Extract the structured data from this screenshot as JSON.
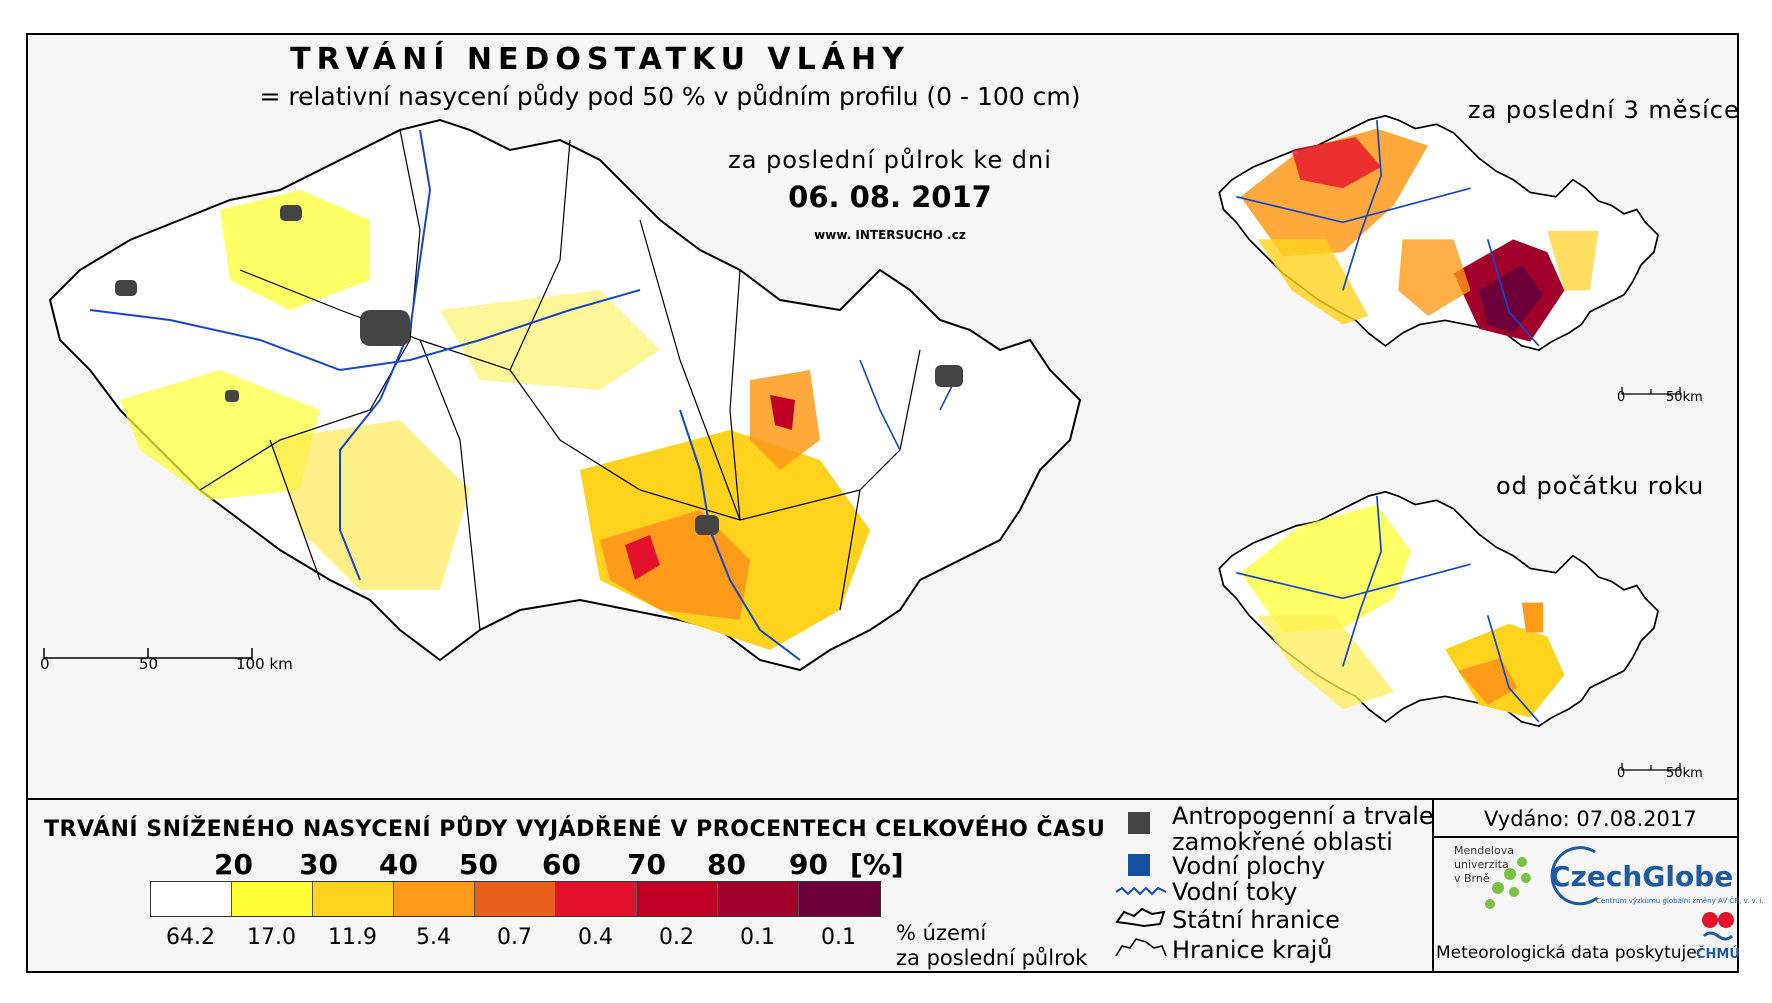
{
  "header": {
    "title": "TRVÁNÍ NEDOSTATKU VLÁHY",
    "subtitle": "= relativní nasycení půdy pod 50 % v půdním profilu (0 - 100 cm)",
    "period": "za poslední půlrok ke dni",
    "date": "06. 08. 2017",
    "website": "www. INTERSUCHO .cz"
  },
  "insets": {
    "last3months": "za poslední 3 měsíce",
    "since_year_start": "od počátku roku",
    "scale_zero": "0",
    "scale_end": "50km"
  },
  "main_scale": {
    "zero": "0",
    "mid": "50",
    "end": "100 km"
  },
  "legend": {
    "title": "TRVÁNÍ SNÍŽENÉHO NASYCENÍ PŮDY VYJÁDŘENÉ V PROCENTECH CELKOVÉHO ČASU",
    "ticks": [
      "20",
      "30",
      "40",
      "50",
      "60",
      "70",
      "80",
      "90",
      "[%]"
    ],
    "colors": [
      "#ffffff",
      "#ffff33",
      "#ffd21e",
      "#ff9a1a",
      "#e8601c",
      "#e3112c",
      "#c00025",
      "#a0002a",
      "#6c003a"
    ],
    "percentages": [
      "64.2",
      "17.0",
      "11.9",
      "5.4",
      "0.7",
      "0.4",
      "0.2",
      "0.1",
      "0.1"
    ],
    "percent_unit_line1": "% území",
    "percent_unit_line2": "za poslední půlrok"
  },
  "key": {
    "anthropogenic_line1": "Antropogenní a trvale",
    "anthropogenic_line2": "zamokřené oblasti",
    "water_bodies": "Vodní plochy",
    "rivers": "Vodní toky",
    "state_border": "Státní hranice",
    "regional_border": "Hranice krajů",
    "anthropogenic_color": "#444444",
    "water_color": "#1450a0",
    "river_color": "#1446c8"
  },
  "footer": {
    "issued": "Vydáno: 07.08.2017",
    "institution1_line1": "Mendelova",
    "institution1_line2": "univerzita",
    "institution1_line3": "v Brně",
    "institution2": "CzechGlobe",
    "institution2_sub": "Centrum výzkumu globální změny AV ČR, v. v. i.",
    "meteo": "Meteorologická data poskytuje:",
    "chmu": "ČHMÚ"
  }
}
